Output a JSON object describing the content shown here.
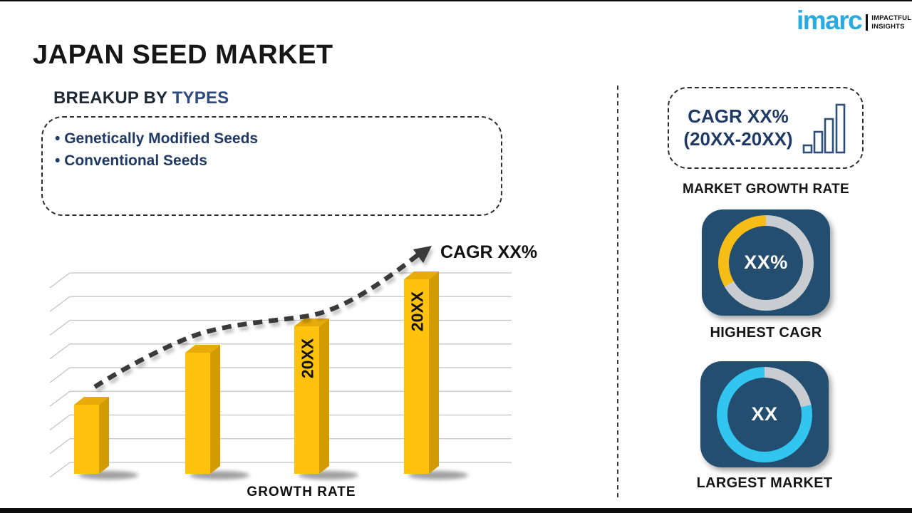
{
  "header": {
    "title": "JAPAN SEED MARKET"
  },
  "logo": {
    "brand": "imarc",
    "tagline_line1": "IMPACTFUL",
    "tagline_line2": "INSIGHTS",
    "brand_color": "#29ABE2"
  },
  "breakup": {
    "heading_prefix": "BREAKUP BY ",
    "heading_highlight": "TYPES",
    "items": [
      "Genetically Modified Seeds",
      "Conventional Seeds"
    ]
  },
  "chart_data": [
    {
      "type": "bar",
      "xlabel": "GROWTH RATE",
      "annotation": "CAGR XX%",
      "gridlines": 9,
      "grid_on": true,
      "bars": [
        {
          "label": "",
          "value": 97
        },
        {
          "label": "",
          "value": 170
        },
        {
          "label": "20XX",
          "value": 207
        },
        {
          "label": "20XX",
          "value": 273
        }
      ],
      "trend": "dashed-arrow-rising",
      "colors": {
        "front": "#FFC20E",
        "side": "#D29B02",
        "top": "#E8AC0A",
        "grid": "#C2C2C2",
        "arrow": "#3A3A3A",
        "label": "#111111"
      }
    },
    {
      "type": "donut",
      "label": "HIGHEST CAGR",
      "center_text": "XX%",
      "fill_color": "#F6BD17",
      "fill_pct": 33.3,
      "track_color": "#C9CDD2"
    },
    {
      "type": "donut",
      "label": "LARGEST MARKET",
      "center_text": "XX",
      "fill_color": "#31C5EF",
      "fill_pct": 78.3,
      "track_color": "#C9CDD2"
    }
  ],
  "sidebar": {
    "growth_box": {
      "line1": "CAGR XX%",
      "line2": "(20XX-20XX)"
    },
    "growth_label": "MARKET GROWTH RATE",
    "highest_label": "HIGHEST CAGR",
    "largest_label": "LARGEST MARKET"
  },
  "colors": {
    "navy_text": "#203A66",
    "heading_blue": "#2C4A7C",
    "card_bg": "#234E70",
    "accent_gold": "#F6BD17",
    "accent_cyan": "#31C5EF",
    "logo_blue": "#29ABE2"
  }
}
